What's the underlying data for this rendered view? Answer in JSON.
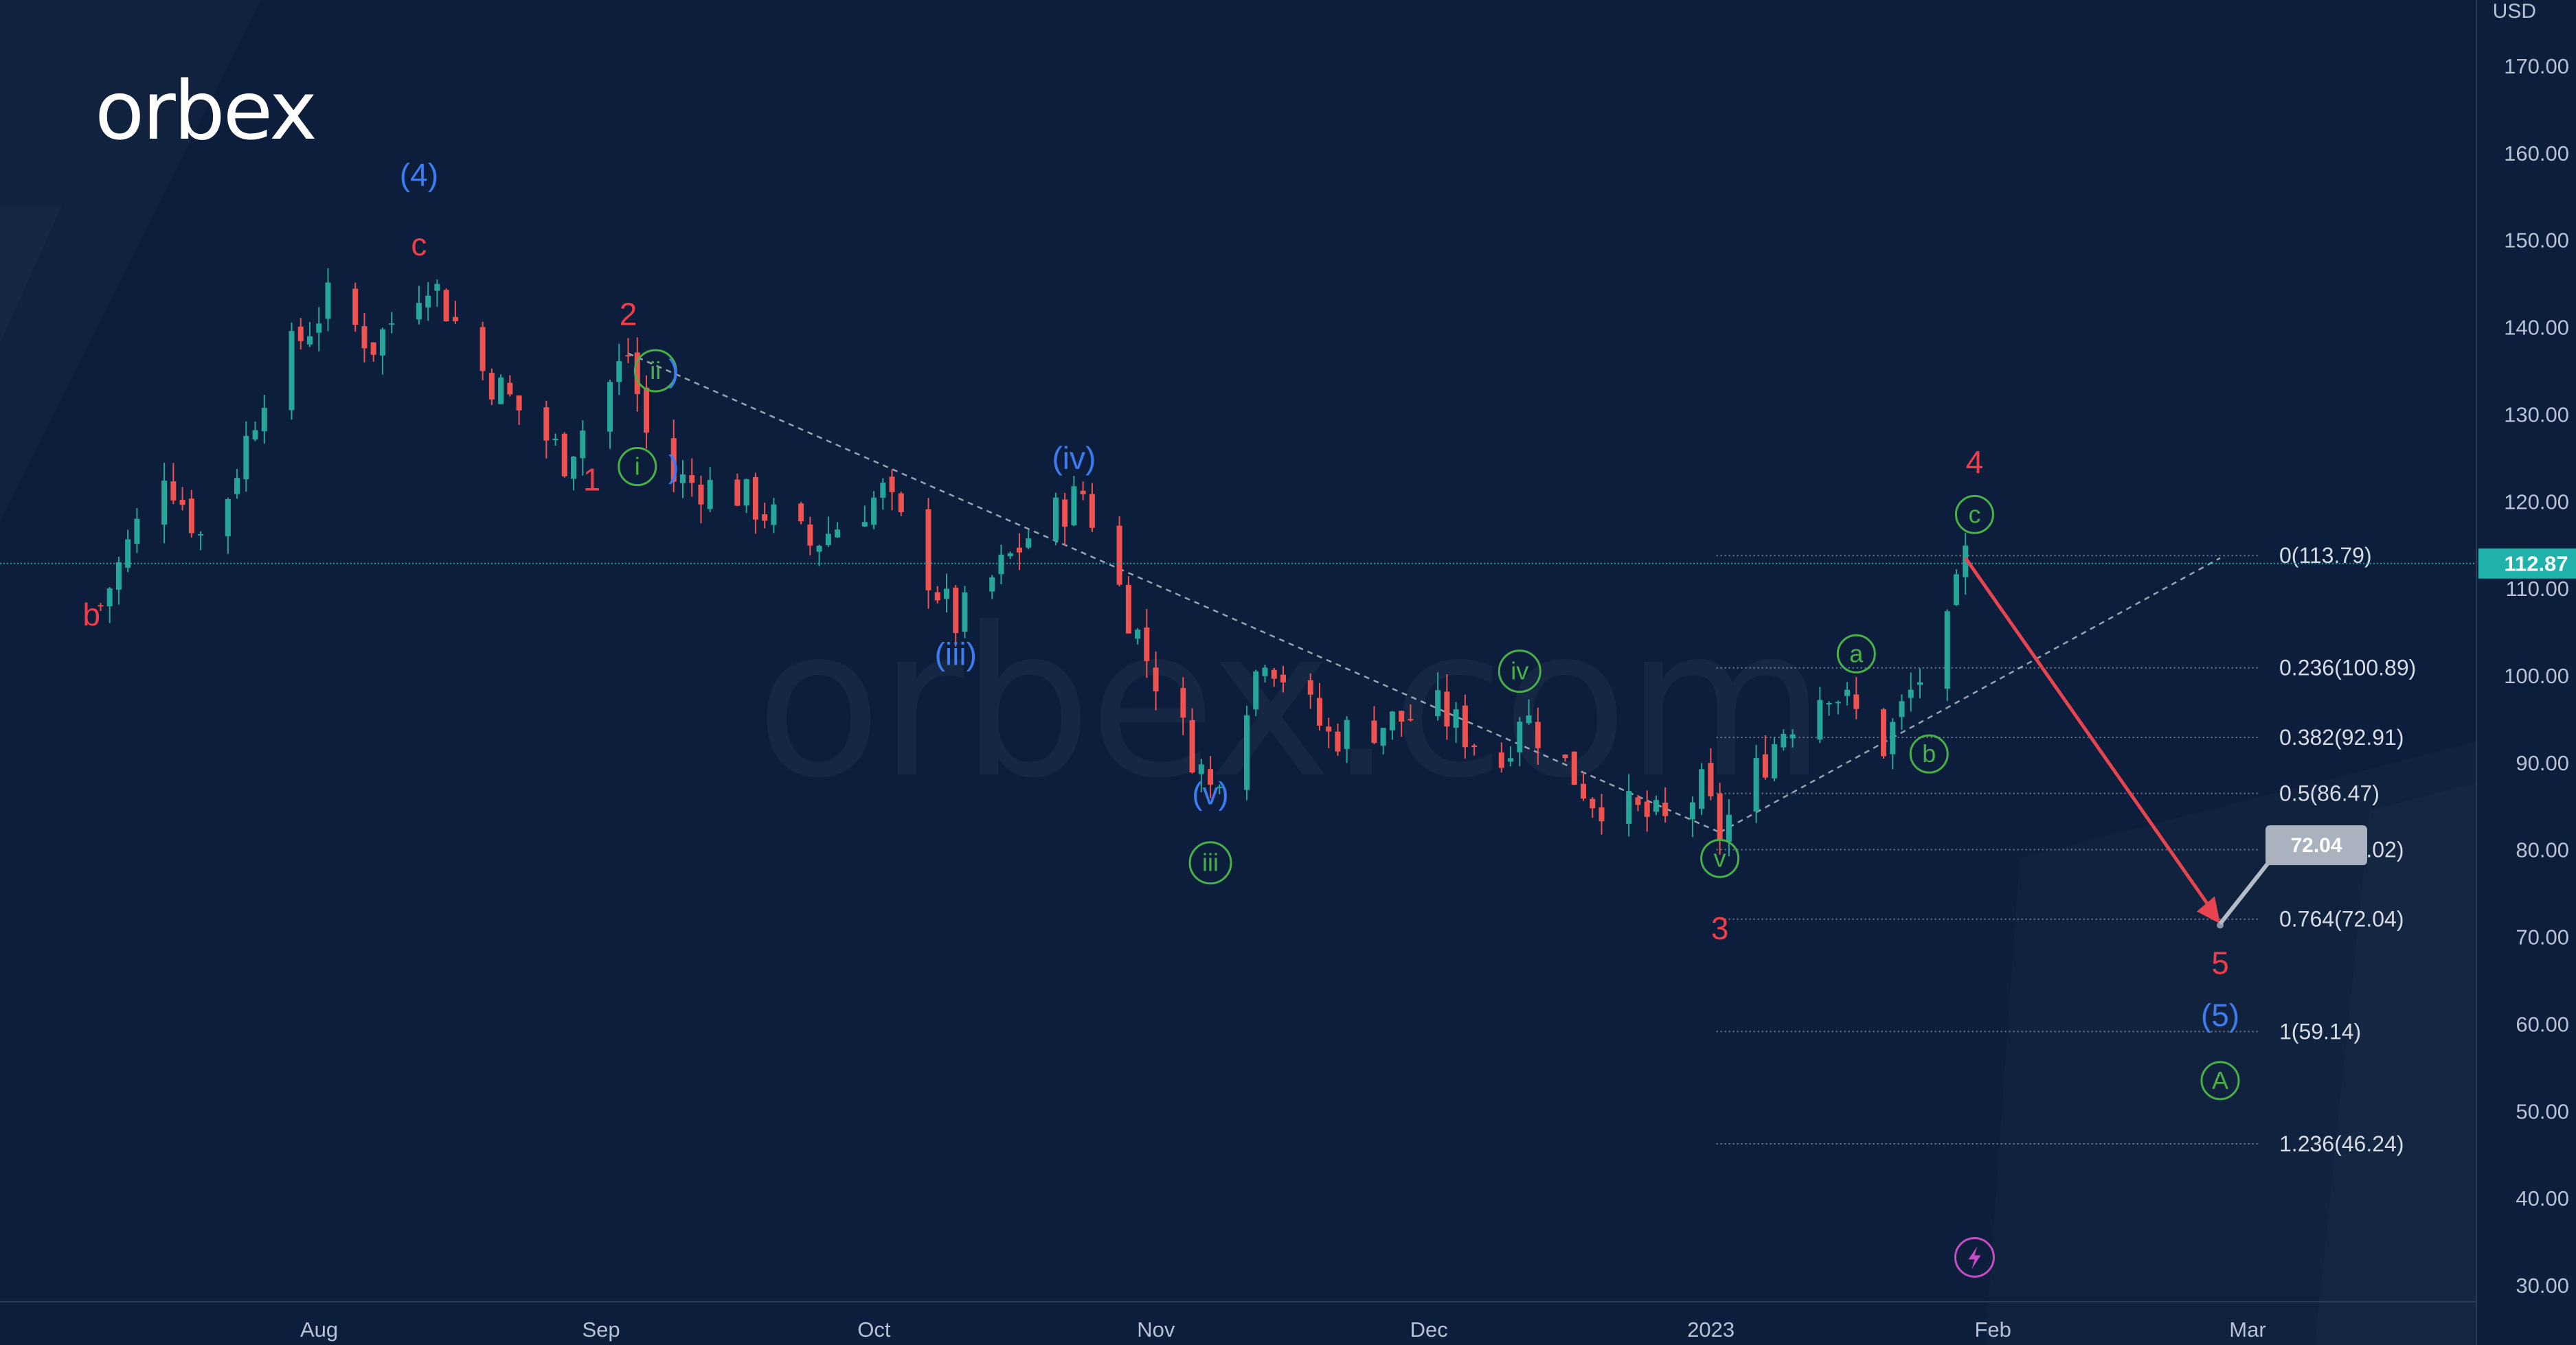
{
  "logo": {
    "text": "orbex"
  },
  "watermark": {
    "text": "orbex.com"
  },
  "price_axis": {
    "currency": "USD"
  },
  "current_price_label": "112.87",
  "target_label": "72.04",
  "colors": {
    "background": "#0c1e3b",
    "candle_up": "#26a69a",
    "candle_down": "#ef5350",
    "red_labels": "#ef3e4a",
    "blue_labels": "#3d7bf0",
    "green_labels": "#49b048",
    "current_price": "#20b2aa",
    "axis_text": "#b8c2d4",
    "arrow": "#e8444f",
    "fib_line": "#8a94a6",
    "alert_icon": "#c44dc4"
  },
  "chart_data": {
    "type": "candlestick",
    "y_axis": {
      "min": 30,
      "max": 170,
      "ticks": [
        "30.00",
        "40.00",
        "50.00",
        "60.00",
        "70.00",
        "80.00",
        "90.00",
        "100.00",
        "110.00",
        "120.00",
        "130.00",
        "140.00",
        "150.00",
        "160.00",
        "170.00"
      ]
    },
    "x_axis": {
      "ticks": [
        {
          "label": "Aug",
          "date": "2022-08-01"
        },
        {
          "label": "Sep",
          "date": "2022-09-01"
        },
        {
          "label": "Oct",
          "date": "2022-10-01"
        },
        {
          "label": "Nov",
          "date": "2022-11-01"
        },
        {
          "label": "Dec",
          "date": "2022-12-01"
        },
        {
          "label": "2023",
          "date": "2023-01-01"
        },
        {
          "label": "Feb",
          "date": "2023-02-01"
        },
        {
          "label": "Mar",
          "date": "2023-03-01"
        }
      ]
    },
    "price_path": [
      {
        "date": "2022-07-11",
        "price": 108
      },
      {
        "date": "2022-07-18",
        "price": 124
      },
      {
        "date": "2022-07-22",
        "price": 116
      },
      {
        "date": "2022-07-25",
        "price": 121
      },
      {
        "date": "2022-07-29",
        "price": 133
      },
      {
        "date": "2022-08-05",
        "price": 143
      },
      {
        "date": "2022-08-10",
        "price": 138
      },
      {
        "date": "2022-08-16",
        "price": 146
      },
      {
        "date": "2022-08-22",
        "price": 135
      },
      {
        "date": "2022-08-31",
        "price": 125
      },
      {
        "date": "2022-09-07",
        "price": 137
      },
      {
        "date": "2022-09-10",
        "price": 123
      },
      {
        "date": "2022-09-19",
        "price": 121
      },
      {
        "date": "2022-09-27",
        "price": 115
      },
      {
        "date": "2022-10-05",
        "price": 121
      },
      {
        "date": "2022-10-13",
        "price": 106
      },
      {
        "date": "2022-10-21",
        "price": 116
      },
      {
        "date": "2022-10-27",
        "price": 121
      },
      {
        "date": "2022-10-31",
        "price": 110
      },
      {
        "date": "2022-11-03",
        "price": 102
      },
      {
        "date": "2022-11-10",
        "price": 87
      },
      {
        "date": "2022-11-16",
        "price": 103
      },
      {
        "date": "2022-11-23",
        "price": 93
      },
      {
        "date": "2022-12-05",
        "price": 96
      },
      {
        "date": "2022-12-12",
        "price": 90
      },
      {
        "date": "2022-12-14",
        "price": 96
      },
      {
        "date": "2022-12-22",
        "price": 86
      },
      {
        "date": "2022-12-30",
        "price": 83
      },
      {
        "date": "2023-01-03",
        "price": 87
      },
      {
        "date": "2023-01-05",
        "price": 82
      },
      {
        "date": "2023-01-12",
        "price": 94
      },
      {
        "date": "2023-01-17",
        "price": 99
      },
      {
        "date": "2023-01-23",
        "price": 92
      },
      {
        "date": "2023-01-26",
        "price": 98
      },
      {
        "date": "2023-01-30",
        "price": 105
      },
      {
        "date": "2023-02-01",
        "price": 113.5
      }
    ],
    "fibonacci_levels": [
      {
        "label": "0(113.79)",
        "price": 113.79
      },
      {
        "label": "0.236(100.89)",
        "price": 100.89
      },
      {
        "label": "0.382(92.91)",
        "price": 92.91
      },
      {
        "label": "0.5(86.47)",
        "price": 86.47
      },
      {
        "label": "0.618(80.02)",
        "price": 80.02
      },
      {
        "label": "0.764(72.04)",
        "price": 72.04
      },
      {
        "label": "1(59.14)",
        "price": 59.14
      },
      {
        "label": "1.236(46.24)",
        "price": 46.24
      }
    ],
    "current_price": 112.87,
    "target": {
      "price": 72.04,
      "from": {
        "date": "2023-02-01",
        "price": 113.5
      },
      "to": {
        "date": "2023-03-01",
        "price": 71.5
      }
    },
    "annotations": [
      {
        "text": "(4)",
        "date": "2022-08-15",
        "price": 157.5,
        "color": "blue",
        "style": "plain"
      },
      {
        "text": "c",
        "date": "2022-08-15",
        "price": 149.5,
        "color": "red",
        "style": "plain"
      },
      {
        "text": "2",
        "date": "2022-09-07",
        "price": 141.5,
        "color": "red",
        "style": "plain"
      },
      {
        "text": "1",
        "date": "2022-09-03",
        "price": 122.5,
        "color": "red",
        "style": "plain"
      },
      {
        "text": "ii",
        "date": "2022-09-10",
        "price": 135,
        "color": "green",
        "style": "circle"
      },
      {
        "text": ")",
        "date": "2022-09-12",
        "price": 135,
        "color": "blue",
        "style": "plain"
      },
      {
        "text": "i",
        "date": "2022-09-08",
        "price": 124,
        "color": "green",
        "style": "circle"
      },
      {
        "text": ")",
        "date": "2022-09-12",
        "price": 124,
        "color": "blue",
        "style": "plain"
      },
      {
        "text": "(iv)",
        "date": "2022-10-26",
        "price": 125,
        "color": "blue",
        "style": "plain"
      },
      {
        "text": "(iii)",
        "date": "2022-10-13",
        "price": 102.5,
        "color": "blue",
        "style": "plain"
      },
      {
        "text": "(v)",
        "date": "2022-11-10",
        "price": 86.5,
        "color": "blue",
        "style": "plain"
      },
      {
        "text": "iii",
        "date": "2022-11-10",
        "price": 78.5,
        "color": "green",
        "style": "circle"
      },
      {
        "text": "iv",
        "date": "2022-12-14",
        "price": 100.5,
        "color": "green",
        "style": "circle"
      },
      {
        "text": "v",
        "date": "2023-01-05",
        "price": 79,
        "color": "green",
        "style": "circle"
      },
      {
        "text": "3",
        "date": "2023-01-05",
        "price": 71,
        "color": "red",
        "style": "plain"
      },
      {
        "text": "a",
        "date": "2023-01-20",
        "price": 102.5,
        "color": "green",
        "style": "circle"
      },
      {
        "text": "b",
        "date": "2023-01-28",
        "price": 91,
        "color": "green",
        "style": "circle"
      },
      {
        "text": "c",
        "date": "2023-02-02",
        "price": 118.5,
        "color": "green",
        "style": "circle"
      },
      {
        "text": "4",
        "date": "2023-02-02",
        "price": 124.5,
        "color": "red",
        "style": "plain"
      },
      {
        "text": "5",
        "date": "2023-03-01",
        "price": 67,
        "color": "red",
        "style": "plain"
      },
      {
        "text": "(5)",
        "date": "2023-03-01",
        "price": 61,
        "color": "blue",
        "style": "plain"
      },
      {
        "text": "A",
        "date": "2023-03-01",
        "price": 53.5,
        "color": "green",
        "style": "circle"
      },
      {
        "text": "b",
        "date": "2022-07-10",
        "price": 107,
        "color": "red",
        "style": "plain"
      }
    ],
    "trendlines": [
      {
        "from": {
          "date": "2022-09-07",
          "price": 137
        },
        "to": {
          "date": "2023-01-05",
          "price": 82
        }
      },
      {
        "from": {
          "date": "2023-01-05",
          "price": 82
        },
        "to": {
          "date": "2023-03-01",
          "price": 113.5
        }
      }
    ],
    "grid": false
  }
}
